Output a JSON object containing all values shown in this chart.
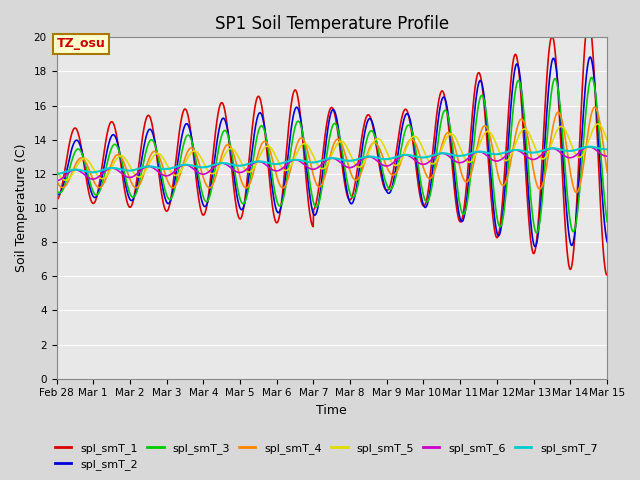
{
  "title": "SP1 Soil Temperature Profile",
  "xlabel": "Time",
  "ylabel": "Soil Temperature (C)",
  "ylim": [
    0,
    20
  ],
  "background_color": "#e8e8e8",
  "fig_background": "#d8d8d8",
  "annotation_text": "TZ_osu",
  "annotation_bg": "#ffffcc",
  "annotation_border": "#aa7700",
  "series_colors": {
    "spl_smT_1": "#dd0000",
    "spl_smT_2": "#0000dd",
    "spl_smT_3": "#00cc00",
    "spl_smT_4": "#ff8800",
    "spl_smT_5": "#dddd00",
    "spl_smT_6": "#cc00cc",
    "spl_smT_7": "#00cccc"
  },
  "xtick_labels": [
    "Feb 28",
    "Mar 1",
    "Mar 2",
    "Mar 3",
    "Mar 4",
    "Mar 5",
    "Mar 6",
    "Mar 7",
    "Mar 8",
    "Mar 9",
    "Mar 10",
    "Mar 11",
    "Mar 12",
    "Mar 13",
    "Mar 14",
    "Mar 15"
  ],
  "title_fontsize": 12,
  "axis_fontsize": 9,
  "tick_fontsize": 7.5
}
